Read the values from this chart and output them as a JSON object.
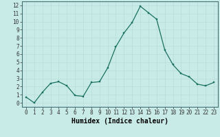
{
  "x": [
    0,
    1,
    2,
    3,
    4,
    5,
    6,
    7,
    8,
    9,
    10,
    11,
    12,
    13,
    14,
    15,
    16,
    17,
    18,
    19,
    20,
    21,
    22,
    23
  ],
  "y": [
    0.7,
    0.0,
    1.3,
    2.4,
    2.6,
    2.1,
    0.9,
    0.8,
    2.5,
    2.6,
    4.3,
    6.9,
    8.6,
    9.9,
    11.9,
    11.1,
    10.3,
    6.5,
    4.7,
    3.6,
    3.2,
    2.3,
    2.1,
    2.5
  ],
  "line_color": "#1a7060",
  "marker_color": "#1a7060",
  "bg_color": "#c8ebe8",
  "grid_color": "#b8dcd8",
  "xlabel": "Humidex (Indice chaleur)",
  "xlim": [
    -0.5,
    23.5
  ],
  "ylim": [
    -0.5,
    12.5
  ],
  "yticks": [
    0,
    1,
    2,
    3,
    4,
    5,
    6,
    7,
    8,
    9,
    10,
    11,
    12
  ],
  "xticks": [
    0,
    1,
    2,
    3,
    4,
    5,
    6,
    7,
    8,
    9,
    10,
    11,
    12,
    13,
    14,
    15,
    16,
    17,
    18,
    19,
    20,
    21,
    22,
    23
  ],
  "tick_fontsize": 5.5,
  "xlabel_fontsize": 7.0,
  "linewidth": 0.9,
  "markersize": 2.0
}
